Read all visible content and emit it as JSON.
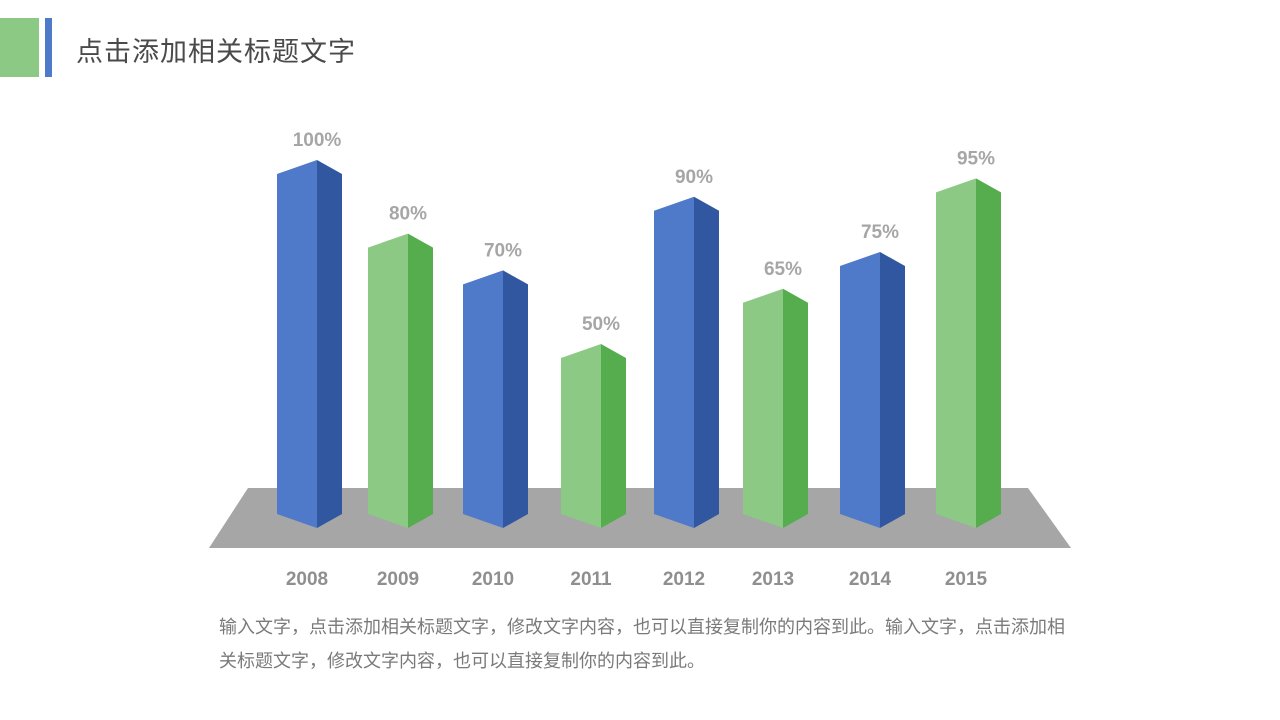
{
  "header": {
    "title": "点击添加相关标题文字"
  },
  "colors": {
    "blue_front": "#4f79c9",
    "blue_side": "#30579f",
    "green_front": "#8cc985",
    "green_side": "#55ad4d",
    "floor": "#a6a6a6"
  },
  "chart_data": {
    "type": "bar",
    "categories": [
      "2008",
      "2009",
      "2010",
      "2011",
      "2012",
      "2013",
      "2014",
      "2015"
    ],
    "values": [
      100,
      80,
      70,
      50,
      90,
      65,
      75,
      95
    ],
    "value_labels": [
      "100%",
      "80%",
      "70%",
      "50%",
      "90%",
      "65%",
      "75%",
      "95%"
    ],
    "bar_colors": [
      "blue",
      "green",
      "blue",
      "green",
      "blue",
      "green",
      "blue",
      "green"
    ],
    "title": "",
    "xlabel": "",
    "ylabel": "",
    "ylim": [
      0,
      100
    ],
    "grid": false,
    "style": "3d-column"
  },
  "body": {
    "text": "输入文字，点击添加相关标题文字，修改文字内容，也可以直接复制你的内容到此。输入文字，点击添加相关标题文字，修改文字内容，也可以直接复制你的内容到此。"
  }
}
